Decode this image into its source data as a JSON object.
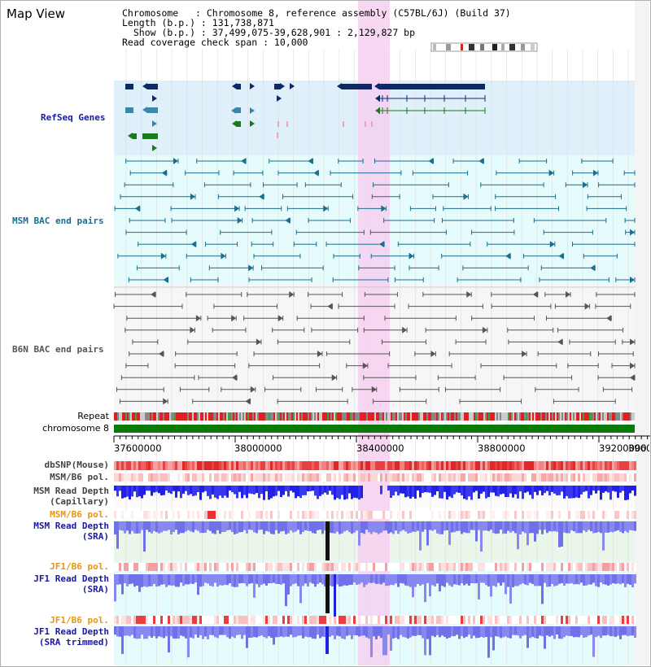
{
  "title": "Map View",
  "info": {
    "chromosome": "Chromosome   : Chromosome 8, reference assembly (C57BL/6J) (Build 37)",
    "length": "Length (b.p.) : 131,738,871",
    "show": "  Show (b.p.) : 37,499,075-39,628,901 : 2,129,827 bp",
    "coverage": "Read coverage check span : 10,000"
  },
  "tracks": {
    "refseq": "RefSeq Genes",
    "msm_bac": "MSM BAC end pairs",
    "b6n_bac": "B6N BAC end pairs",
    "repeat": "Repeat",
    "chromosome": "chromosome 8",
    "dbsnp": "dbSNP(Mouse)",
    "msm_b6_pol": "MSM/B6 pol.",
    "msm_read_depth": "MSM Read Depth",
    "capillary": "(Capillary)",
    "msm_b6_pol2": "MSM/B6 pol.",
    "msm_read_depth_sra": "MSM Read Depth",
    "sra1": "(SRA)",
    "jf1_b6_pol": "JF1/B6 pol.",
    "jf1_read_depth": "JF1 Read Depth",
    "sra2": "(SRA)",
    "jf1_b6_pol2": "JF1/B6 pol.",
    "jf1_read_depth_trim": "JF1 Read Depth",
    "sra_trimmed": "(SRA trimmed)"
  },
  "axis": {
    "ticks": [
      "37600000",
      "38000000",
      "38400000",
      "38800000",
      "39200000",
      "3960"
    ]
  },
  "colors": {
    "gene_dark": "#0b2a6b",
    "gene_teal": "#3c86a8",
    "gene_green": "#1a7a1a",
    "msm_bac": "#1a6e8e",
    "b6n_bac": "#555555",
    "highlight": "#f6d0f0",
    "chromosome_bar": "#0a7a0a",
    "label_blue": "#1a1aa0",
    "label_teal": "#1a6e8e",
    "label_orange": "#e8960a"
  }
}
